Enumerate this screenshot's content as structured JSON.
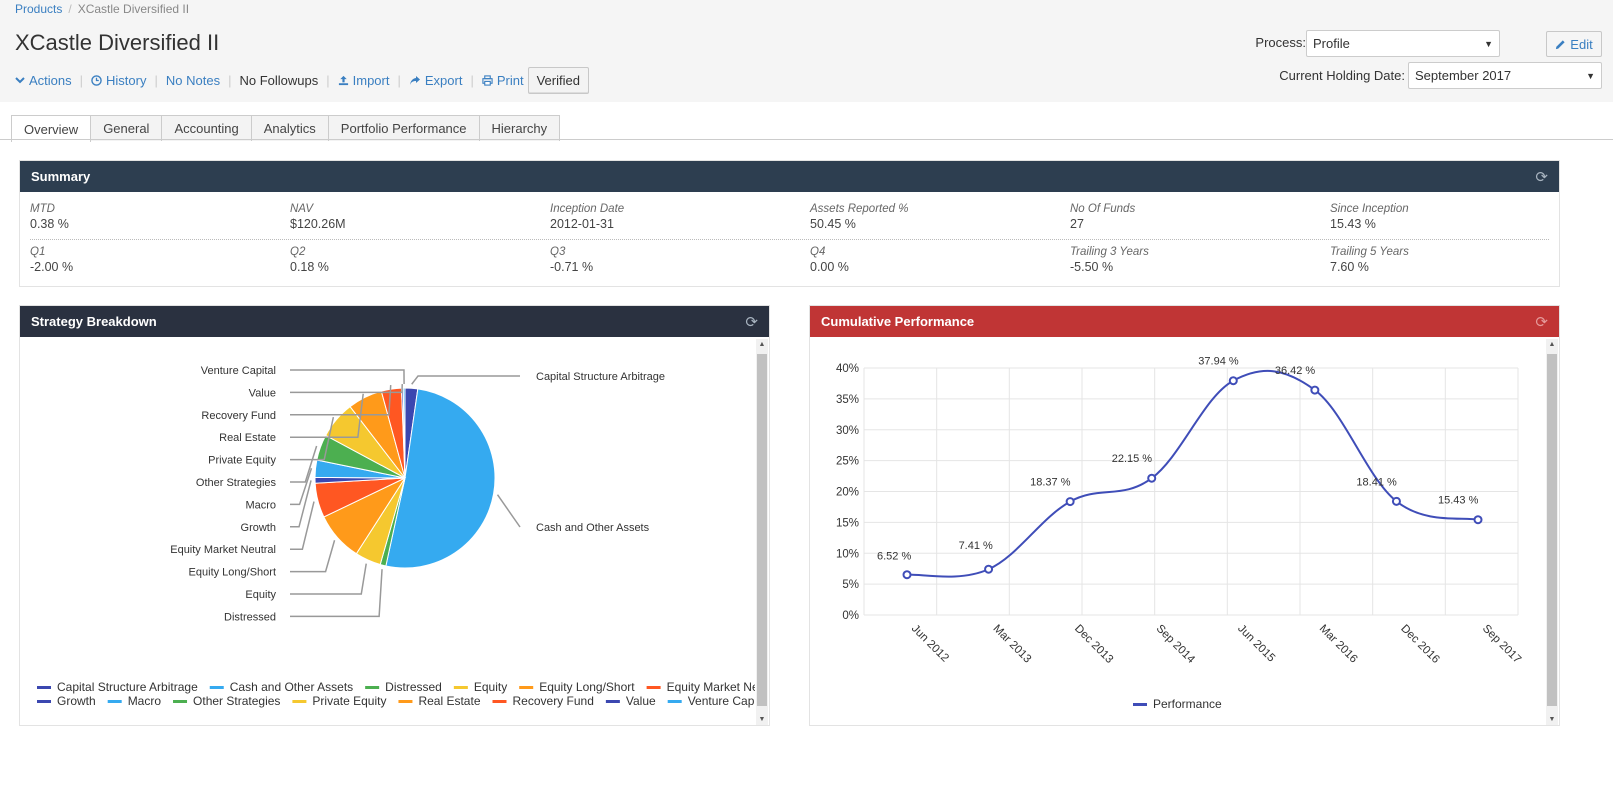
{
  "breadcrumb": {
    "root": "Products",
    "current": "XCastle Diversified II"
  },
  "page": {
    "title": "XCastle Diversified II"
  },
  "actions": {
    "actions": "Actions",
    "history": "History",
    "notes": "No Notes",
    "followups": "No Followups",
    "import": "Import",
    "export": "Export",
    "print": "Print",
    "verified": "Verified"
  },
  "process": {
    "label": "Process:",
    "value": "Profile"
  },
  "holding": {
    "label": "Current Holding Date:",
    "value": "September 2017"
  },
  "edit_label": "Edit",
  "tabs": [
    "Overview",
    "General",
    "Accounting",
    "Analytics",
    "Portfolio Performance",
    "Hierarchy"
  ],
  "summary": {
    "title": "Summary",
    "row1": [
      {
        "label": "MTD",
        "value": "0.38 %"
      },
      {
        "label": "NAV",
        "value": "$120.26M"
      },
      {
        "label": "Inception Date",
        "value": "2012-01-31"
      },
      {
        "label": "Assets Reported %",
        "value": "50.45 %"
      },
      {
        "label": "No Of Funds",
        "value": "27"
      },
      {
        "label": "Since Inception",
        "value": "15.43 %"
      }
    ],
    "row2": [
      {
        "label": "Q1",
        "value": "-2.00 %"
      },
      {
        "label": "Q2",
        "value": "0.18 %"
      },
      {
        "label": "Q3",
        "value": "-0.71 %"
      },
      {
        "label": "Q4",
        "value": "0.00 %"
      },
      {
        "label": "Trailing 3 Years",
        "value": "-5.50 %"
      },
      {
        "label": "Trailing 5 Years",
        "value": "7.60 %"
      }
    ]
  },
  "colors": {
    "summary_head": "#2d3e50",
    "strategy_head": "#2a3140",
    "cumulative_head": "#c03535",
    "perf_line": "#3f4db8"
  },
  "chart_data": [
    {
      "type": "pie",
      "title": "Strategy Breakdown",
      "slices": [
        {
          "name": "Capital Structure Arbitrage",
          "value": 2.2,
          "color": "#3b47b0"
        },
        {
          "name": "Cash and Other Assets",
          "value": 49.5,
          "color": "#35aaf0"
        },
        {
          "name": "Distressed",
          "value": 1.0,
          "color": "#4caf50"
        },
        {
          "name": "Equity",
          "value": 4.5,
          "color": "#f5c82f"
        },
        {
          "name": "Equity Long/Short",
          "value": 8.5,
          "color": "#ff9a1a"
        },
        {
          "name": "Equity Market Neutral",
          "value": 6.0,
          "color": "#ff5722"
        },
        {
          "name": "Growth",
          "value": 1.0,
          "color": "#3b47b0"
        },
        {
          "name": "Macro",
          "value": 3.0,
          "color": "#35aaf0"
        },
        {
          "name": "Other Strategies",
          "value": 4.5,
          "color": "#4caf50"
        },
        {
          "name": "Private Equity",
          "value": 6.5,
          "color": "#f5c82f"
        },
        {
          "name": "Real Estate",
          "value": 6.0,
          "color": "#ff9a1a"
        },
        {
          "name": "Recovery Fund",
          "value": 3.5,
          "color": "#ff5722"
        },
        {
          "name": "Value",
          "value": 0.3,
          "color": "#3b47b0"
        },
        {
          "name": "Venture Capital",
          "value": 0.3,
          "color": "#35aaf0"
        }
      ],
      "legend": "bottom"
    },
    {
      "type": "line",
      "title": "Cumulative Performance",
      "categories": [
        "Jun 2012",
        "Mar 2013",
        "Dec 2013",
        "Sep 2014",
        "Jun 2015",
        "Mar 2016",
        "Dec 2016",
        "Sep 2017"
      ],
      "series": [
        {
          "name": "Performance",
          "values": [
            6.52,
            7.41,
            18.37,
            22.15,
            37.94,
            36.42,
            18.41,
            15.43
          ],
          "labels": [
            "6.52 %",
            "7.41 %",
            "18.37 %",
            "22.15 %",
            "37.94 %",
            "36.42 %",
            "18.41 %",
            "15.43 %"
          ]
        }
      ],
      "yticks": [
        "0%",
        "5%",
        "10%",
        "15%",
        "20%",
        "25%",
        "30%",
        "35%",
        "40%"
      ],
      "ylim": [
        0,
        40
      ],
      "grid": true,
      "legend": "bottom"
    }
  ]
}
